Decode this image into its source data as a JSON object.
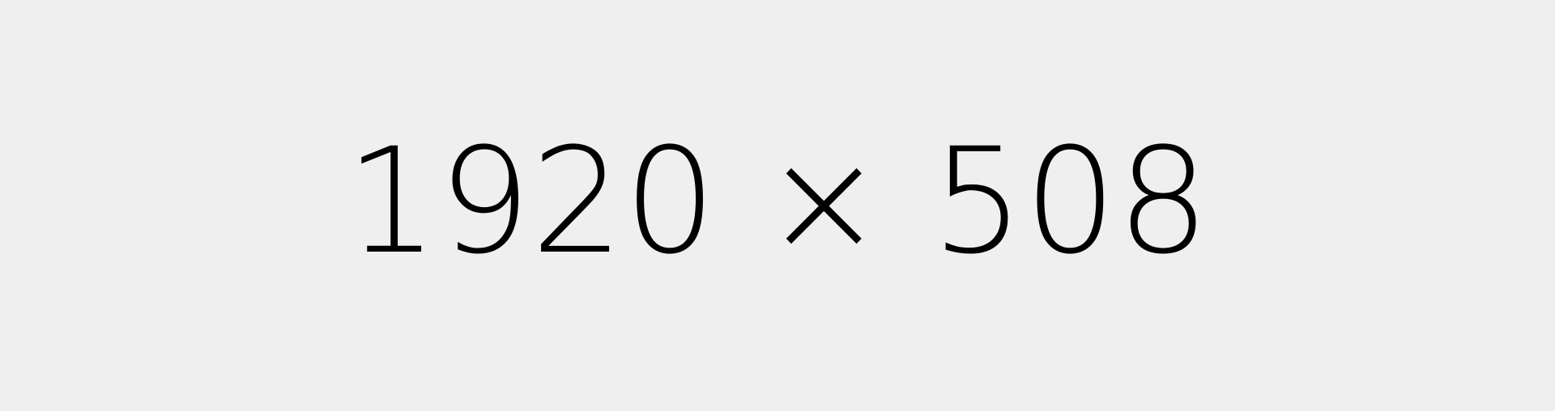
{
  "placeholder": {
    "label": "1920 × 508",
    "background_color": "#efefef",
    "text_color": "#000000"
  }
}
